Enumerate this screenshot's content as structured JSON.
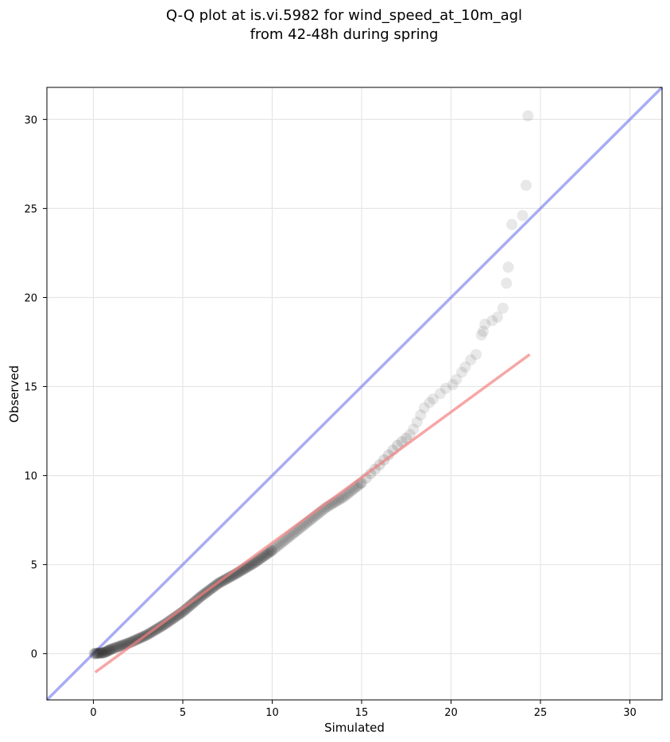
{
  "chart_data": {
    "type": "scatter",
    "title_lines": [
      "Q-Q plot at is.vi.5982 for wind_speed_at_10m_agl",
      "from 42-48h during spring"
    ],
    "xlabel": "Simulated",
    "ylabel": "Observed",
    "xlim": [
      -2.6,
      31.8
    ],
    "ylim": [
      -2.6,
      31.8
    ],
    "xticks": [
      0,
      5,
      10,
      15,
      20,
      25,
      30
    ],
    "yticks": [
      0,
      5,
      10,
      15,
      20,
      25,
      30
    ],
    "xtick_labels": [
      "0",
      "5",
      "10",
      "15",
      "20",
      "25",
      "30"
    ],
    "ytick_labels": [
      "0",
      "5",
      "10",
      "15",
      "20",
      "25",
      "30"
    ],
    "grid": true,
    "identity_line": {
      "color": "#7b7fee",
      "from": [
        -2.6,
        -2.6
      ],
      "to": [
        31.8,
        31.8
      ]
    },
    "fit_line": {
      "color": "#f28080",
      "from": [
        0.1,
        -1.05
      ],
      "to": [
        24.4,
        16.8
      ]
    },
    "point_color": "#222222",
    "point_curve_knots": {
      "x": [
        0.05,
        0.6,
        1.0,
        2.0,
        3.0,
        4.0,
        5.0,
        6.0,
        7.0,
        8.0,
        9.0,
        10.0,
        11.0,
        12.0,
        13.0,
        14.0,
        15.0,
        16.0,
        17.0,
        17.5
      ],
      "y": [
        0.0,
        0.05,
        0.25,
        0.6,
        1.05,
        1.65,
        2.35,
        3.2,
        3.95,
        4.5,
        5.1,
        5.8,
        6.6,
        7.4,
        8.2,
        8.8,
        9.6,
        10.6,
        11.7,
        12.1
      ]
    },
    "tail_points": [
      {
        "x": 17.7,
        "y": 12.3
      },
      {
        "x": 17.9,
        "y": 12.6
      },
      {
        "x": 18.1,
        "y": 13.0
      },
      {
        "x": 18.3,
        "y": 13.4
      },
      {
        "x": 18.5,
        "y": 13.8
      },
      {
        "x": 18.8,
        "y": 14.1
      },
      {
        "x": 19.0,
        "y": 14.3
      },
      {
        "x": 19.4,
        "y": 14.6
      },
      {
        "x": 19.7,
        "y": 14.9
      },
      {
        "x": 20.1,
        "y": 15.1
      },
      {
        "x": 20.3,
        "y": 15.4
      },
      {
        "x": 20.6,
        "y": 15.8
      },
      {
        "x": 20.8,
        "y": 16.1
      },
      {
        "x": 21.1,
        "y": 16.5
      },
      {
        "x": 21.4,
        "y": 16.8
      },
      {
        "x": 21.7,
        "y": 17.9
      },
      {
        "x": 21.8,
        "y": 18.1
      },
      {
        "x": 21.9,
        "y": 18.5
      },
      {
        "x": 22.3,
        "y": 18.7
      },
      {
        "x": 22.6,
        "y": 18.9
      },
      {
        "x": 22.9,
        "y": 19.4
      },
      {
        "x": 23.1,
        "y": 20.8
      },
      {
        "x": 23.2,
        "y": 21.7
      },
      {
        "x": 23.4,
        "y": 24.1
      },
      {
        "x": 24.0,
        "y": 24.6
      },
      {
        "x": 24.2,
        "y": 26.3
      },
      {
        "x": 24.3,
        "y": 30.2
      }
    ]
  }
}
